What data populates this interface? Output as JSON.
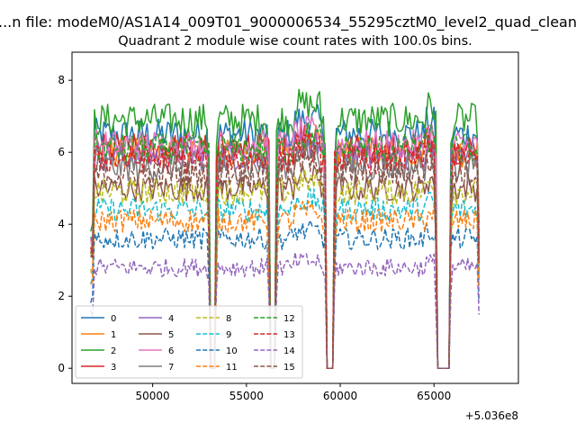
{
  "chart_data": {
    "type": "line",
    "suptitle": "...n file: modeM0/AS1A14_009T01_9000006534_55295cztM0_level2_quad_clean",
    "title": "Quadrant 2 module wise count rates with 100.0s bins.",
    "xlabel": "",
    "ylabel": "",
    "x_offset_label": "+5.036e8",
    "xlim": [
      45700,
      69500
    ],
    "ylim": [
      -0.42,
      8.78
    ],
    "x_ticks": [
      50000,
      55000,
      60000,
      65000
    ],
    "x_tick_labels": [
      "50000",
      "55000",
      "60000",
      "65000"
    ],
    "y_ticks": [
      0,
      2,
      4,
      6,
      8
    ],
    "y_tick_labels": [
      "0",
      "2",
      "4",
      "6",
      "8"
    ],
    "x_range": [
      46700,
      67400
    ],
    "bin_size_s": 100,
    "gaps": [
      [
        53100,
        53300
      ],
      [
        56300,
        56500
      ],
      [
        59300,
        59600
      ],
      [
        65200,
        65800
      ]
    ],
    "legend_position": "lower-left",
    "legend_columns": 4,
    "series": [
      {
        "name": "0",
        "color": "#1f77b4",
        "style": "solid",
        "mean": 6.5
      },
      {
        "name": "1",
        "color": "#ff7f0e",
        "style": "solid",
        "mean": 6.0
      },
      {
        "name": "2",
        "color": "#2ca02c",
        "style": "solid",
        "mean": 6.9
      },
      {
        "name": "3",
        "color": "#d62728",
        "style": "solid",
        "mean": 6.1
      },
      {
        "name": "4",
        "color": "#9467bd",
        "style": "solid",
        "mean": 5.9
      },
      {
        "name": "5",
        "color": "#8c564b",
        "style": "solid",
        "mean": 5.0
      },
      {
        "name": "6",
        "color": "#e377c2",
        "style": "solid",
        "mean": 6.2
      },
      {
        "name": "7",
        "color": "#7f7f7f",
        "style": "solid",
        "mean": 5.6
      },
      {
        "name": "8",
        "color": "#bcbd22",
        "style": "dashed",
        "mean": 4.9
      },
      {
        "name": "9",
        "color": "#17becf",
        "style": "dashed",
        "mean": 4.4
      },
      {
        "name": "10",
        "color": "#1f77b4",
        "style": "dashed",
        "mean": 3.6
      },
      {
        "name": "11",
        "color": "#ff7f0e",
        "style": "dashed",
        "mean": 4.1
      },
      {
        "name": "12",
        "color": "#2ca02c",
        "style": "dashed",
        "mean": 6.1
      },
      {
        "name": "13",
        "color": "#d62728",
        "style": "dashed",
        "mean": 5.8
      },
      {
        "name": "14",
        "color": "#9467bd",
        "style": "dashed",
        "mean": 2.8
      },
      {
        "name": "15",
        "color": "#8c564b",
        "style": "dashed",
        "mean": 5.4
      }
    ]
  }
}
